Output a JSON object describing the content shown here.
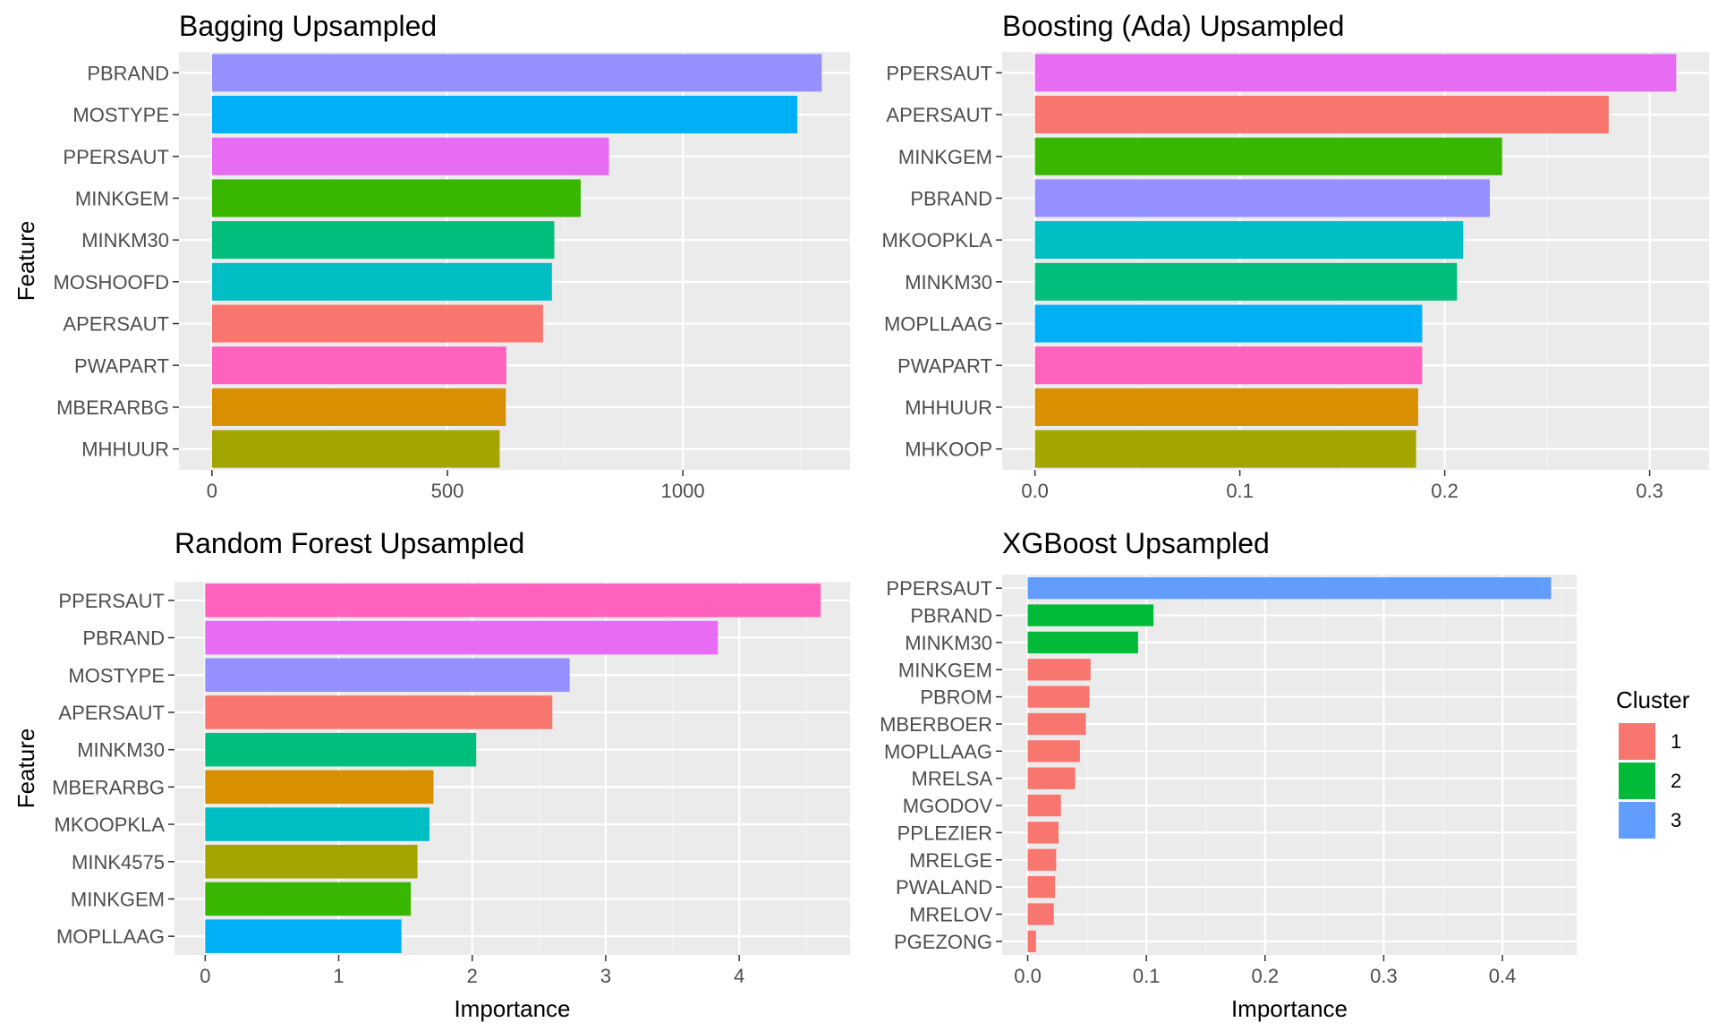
{
  "chart_data": [
    {
      "type": "bar",
      "orientation": "horizontal",
      "title": "Bagging Upsampled",
      "xlabel": "",
      "ylabel": "Feature",
      "xlim": [
        -70,
        1355
      ],
      "xticks": [
        0,
        500,
        1000
      ],
      "xtick_labels": [
        "0",
        "500",
        "1000"
      ],
      "grid": true,
      "categories": [
        "PBRAND",
        "MOSTYPE",
        "PPERSAUT",
        "MINKGEM",
        "MINKM30",
        "MOSHOOFD",
        "APERSAUT",
        "PWAPART",
        "MBERARBG",
        "MHHUUR"
      ],
      "values": [
        1295,
        1243,
        843,
        783,
        727,
        722,
        703,
        625,
        624,
        611
      ],
      "colors": [
        "#9590FF",
        "#00B0F6",
        "#E76BF3",
        "#39B600",
        "#00BF7D",
        "#00BFC4",
        "#F8766D",
        "#FF62BC",
        "#D89000",
        "#A3A500"
      ]
    },
    {
      "type": "bar",
      "orientation": "horizontal",
      "title": "Boosting (Ada) Upsampled",
      "xlabel": "",
      "ylabel": "",
      "xlim": [
        -0.016,
        0.329
      ],
      "xticks": [
        0.0,
        0.1,
        0.2,
        0.3
      ],
      "xtick_labels": [
        "0.0",
        "0.1",
        "0.2",
        "0.3"
      ],
      "grid": true,
      "categories": [
        "PPERSAUT",
        "APERSAUT",
        "MINKGEM",
        "PBRAND",
        "MKOOPKLA",
        "MINKM30",
        "MOPLLAAG",
        "PWAPART",
        "MHHUUR",
        "MHKOOP"
      ],
      "values": [
        0.313,
        0.28,
        0.228,
        0.222,
        0.209,
        0.206,
        0.189,
        0.189,
        0.187,
        0.186
      ],
      "colors": [
        "#E76BF3",
        "#F8766D",
        "#39B600",
        "#9590FF",
        "#00BFC4",
        "#00BF7D",
        "#00B0F6",
        "#FF62BC",
        "#D89000",
        "#A3A500"
      ]
    },
    {
      "type": "bar",
      "orientation": "horizontal",
      "title": "Random Forest Upsampled",
      "xlabel": "Importance",
      "ylabel": "Feature",
      "xlim": [
        -0.23,
        4.83
      ],
      "xticks": [
        0,
        1,
        2,
        3,
        4
      ],
      "xtick_labels": [
        "0",
        "1",
        "2",
        "3",
        "4"
      ],
      "grid": true,
      "categories": [
        "PPERSAUT",
        "PBRAND",
        "MOSTYPE",
        "APERSAUT",
        "MINKM30",
        "MBERARBG",
        "MKOOPKLA",
        "MINK4575",
        "MINKGEM",
        "MOPLLAAG"
      ],
      "values": [
        4.61,
        3.84,
        2.73,
        2.6,
        2.03,
        1.71,
        1.68,
        1.59,
        1.54,
        1.47
      ],
      "colors": [
        "#FF62BC",
        "#E76BF3",
        "#9590FF",
        "#F8766D",
        "#00BF7D",
        "#D89000",
        "#00BFC4",
        "#A3A500",
        "#39B600",
        "#00B0F6"
      ]
    },
    {
      "type": "bar",
      "orientation": "horizontal",
      "title": "XGBoost Upsampled",
      "xlabel": "Importance",
      "ylabel": "",
      "xlim": [
        -0.0215,
        0.4625
      ],
      "xticks": [
        0.0,
        0.1,
        0.2,
        0.3,
        0.4
      ],
      "xtick_labels": [
        "0.0",
        "0.1",
        "0.2",
        "0.3",
        "0.4"
      ],
      "grid": true,
      "categories": [
        "PPERSAUT",
        "PBRAND",
        "MINKM30",
        "MINKGEM",
        "PBROM",
        "MBERBOER",
        "MOPLLAAG",
        "MRELSA",
        "MGODOV",
        "PPLEZIER",
        "MRELGE",
        "PWALAND",
        "MRELOV",
        "PGEZONG"
      ],
      "values": [
        0.441,
        0.106,
        0.093,
        0.053,
        0.052,
        0.049,
        0.044,
        0.04,
        0.028,
        0.026,
        0.024,
        0.023,
        0.022,
        0.007
      ],
      "clusters": [
        3,
        2,
        2,
        1,
        1,
        1,
        1,
        1,
        1,
        1,
        1,
        1,
        1,
        1
      ],
      "cluster_colors": {
        "1": "#F8766D",
        "2": "#00BA38",
        "3": "#619CFF"
      },
      "legend": {
        "title": "Cluster",
        "position": "right",
        "items": [
          {
            "label": "1",
            "color": "#F8766D"
          },
          {
            "label": "2",
            "color": "#00BA38"
          },
          {
            "label": "3",
            "color": "#619CFF"
          }
        ]
      }
    }
  ],
  "style": {
    "panel_bg": "#EBEBEB",
    "grid_major": "#FFFFFF",
    "grid_minor": "#F4F4F4"
  }
}
